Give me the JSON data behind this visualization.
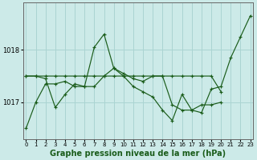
{
  "background_color": "#cceae8",
  "grid_color": "#aad4d2",
  "line_color": "#1a5c1a",
  "marker_color": "#1a5c1a",
  "xlabel": "Graphe pression niveau de la mer (hPa)",
  "xlabel_fontsize": 7.0,
  "yticks": [
    1017,
    1018
  ],
  "xticks": [
    0,
    1,
    2,
    3,
    4,
    5,
    6,
    7,
    8,
    9,
    10,
    11,
    12,
    13,
    14,
    15,
    16,
    17,
    18,
    19,
    20,
    21,
    22,
    23
  ],
  "xlim": [
    -0.3,
    23.3
  ],
  "ylim": [
    1016.3,
    1018.9
  ],
  "series": [
    {
      "x": [
        0,
        1,
        2,
        3,
        4,
        5,
        6,
        7,
        8,
        9,
        10,
        11,
        12,
        13,
        14,
        15,
        16,
        17,
        18,
        19,
        20,
        21,
        22,
        23
      ],
      "y": [
        1016.5,
        1017.0,
        1017.35,
        1017.35,
        1017.4,
        1017.3,
        1017.3,
        1018.05,
        1018.3,
        1017.65,
        1017.5,
        1017.3,
        1017.2,
        1017.1,
        1016.85,
        1016.65,
        1017.15,
        1016.85,
        1016.8,
        1017.25,
        1017.3,
        1017.85,
        1018.25,
        1018.65
      ]
    },
    {
      "x": [
        0,
        1,
        2,
        3,
        4,
        5,
        6,
        7,
        8,
        9,
        10,
        11,
        12,
        13,
        14,
        15,
        16,
        17,
        18,
        19,
        20
      ],
      "y": [
        1017.5,
        1017.5,
        1017.45,
        1016.9,
        1017.15,
        1017.35,
        1017.3,
        1017.3,
        1017.5,
        1017.65,
        1017.55,
        1017.45,
        1017.4,
        1017.5,
        1017.5,
        1016.95,
        1016.85,
        1016.85,
        1016.95,
        1016.95,
        1017.0
      ]
    },
    {
      "x": [
        0,
        1,
        2,
        3,
        4,
        5,
        6,
        7,
        8,
        9,
        10,
        11,
        12,
        13,
        14,
        15,
        16,
        17,
        18,
        19,
        20
      ],
      "y": [
        1017.5,
        1017.5,
        1017.5,
        1017.5,
        1017.5,
        1017.5,
        1017.5,
        1017.5,
        1017.5,
        1017.5,
        1017.5,
        1017.5,
        1017.5,
        1017.5,
        1017.5,
        1017.5,
        1017.5,
        1017.5,
        1017.5,
        1017.5,
        1017.2
      ]
    }
  ]
}
